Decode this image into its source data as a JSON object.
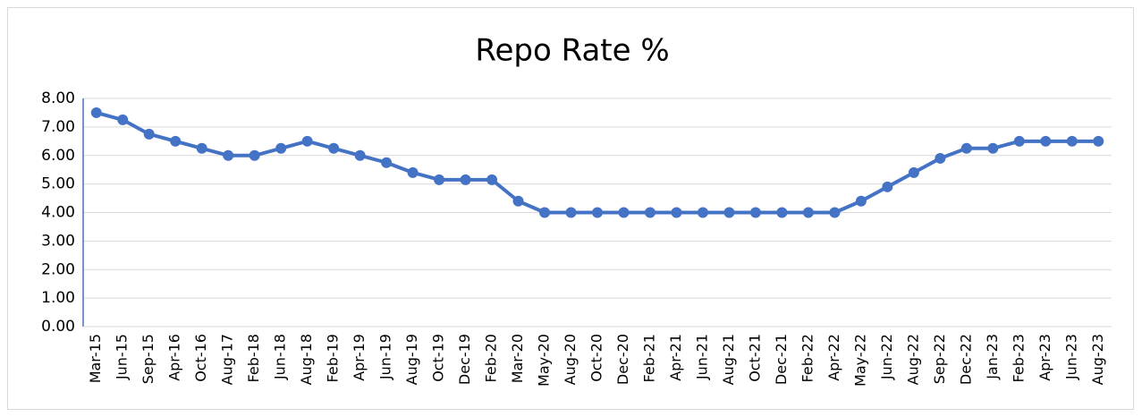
{
  "chart_data": {
    "type": "line",
    "title": "Repo Rate %",
    "categories": [
      "Mar-15",
      "Jun-15",
      "Sep-15",
      "Apr-16",
      "Oct-16",
      "Aug-17",
      "Feb-18",
      "Jun-18",
      "Aug-18",
      "Feb-19",
      "Apr-19",
      "Jun-19",
      "Aug-19",
      "Oct-19",
      "Dec-19",
      "Feb-20",
      "Mar-20",
      "May-20",
      "Aug-20",
      "Oct-20",
      "Dec-20",
      "Feb-21",
      "Apr-21",
      "Jun-21",
      "Aug-21",
      "Oct-21",
      "Dec-21",
      "Feb-22",
      "Apr-22",
      "May-22",
      "Jun-22",
      "Aug-22",
      "Sep-22",
      "Dec-22",
      "Jan-23",
      "Feb-23",
      "Apr-23",
      "Jun-23",
      "Aug-23"
    ],
    "values": [
      7.5,
      7.25,
      6.75,
      6.5,
      6.25,
      6.0,
      6.0,
      6.25,
      6.5,
      6.25,
      6.0,
      5.75,
      5.4,
      5.15,
      5.15,
      5.15,
      4.4,
      4.0,
      4.0,
      4.0,
      4.0,
      4.0,
      4.0,
      4.0,
      4.0,
      4.0,
      4.0,
      4.0,
      4.0,
      4.4,
      4.9,
      5.4,
      5.9,
      6.25,
      6.25,
      6.5,
      6.5,
      6.5,
      6.5
    ],
    "color": "#4472c4",
    "ylim": [
      0,
      8
    ],
    "yticks": [
      {
        "value": 0,
        "label": "0.00"
      },
      {
        "value": 1,
        "label": "1.00"
      },
      {
        "value": 2,
        "label": "2.00"
      },
      {
        "value": 3,
        "label": "3.00"
      },
      {
        "value": 4,
        "label": "4.00"
      },
      {
        "value": 5,
        "label": "5.00"
      },
      {
        "value": 6,
        "label": "6.00"
      },
      {
        "value": 7,
        "label": "7.00"
      },
      {
        "value": 8,
        "label": "8.00"
      }
    ],
    "grid": true
  }
}
